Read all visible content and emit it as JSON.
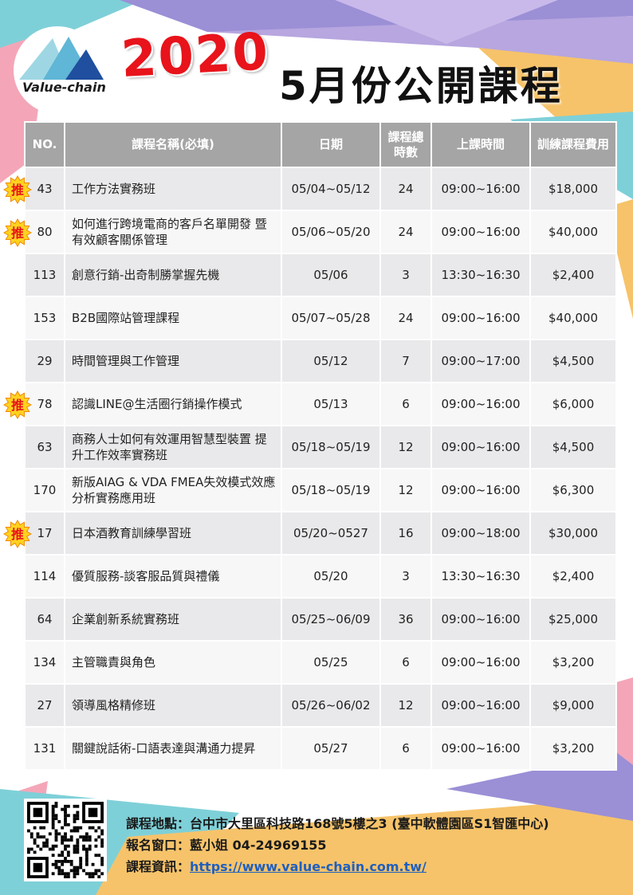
{
  "header": {
    "logo_text": "Value-chain",
    "year": "2020",
    "title": "5月份公開課程"
  },
  "table": {
    "columns": [
      "NO.",
      "課程名稱(必填)",
      "日期",
      "課程總時數",
      "上課時間",
      "訓練課程費用"
    ],
    "badge_label": "推",
    "rows": [
      {
        "no": "43",
        "name": "工作方法實務班",
        "date": "05/04~05/12",
        "hours": "24",
        "time": "09:00~16:00",
        "fee": "$18,000",
        "recommended": true
      },
      {
        "no": "80",
        "name": "如何進行跨境電商的客戶名單開發 暨有效顧客關係管理",
        "date": "05/06~05/20",
        "hours": "24",
        "time": "09:00~16:00",
        "fee": "$40,000",
        "recommended": true
      },
      {
        "no": "113",
        "name": "創意行銷-出奇制勝掌握先機",
        "date": "05/06",
        "hours": "3",
        "time": "13:30~16:30",
        "fee": "$2,400",
        "recommended": false
      },
      {
        "no": "153",
        "name": "B2B國際站管理課程",
        "date": "05/07~05/28",
        "hours": "24",
        "time": "09:00~16:00",
        "fee": "$40,000",
        "recommended": false
      },
      {
        "no": "29",
        "name": "時間管理與工作管理",
        "date": "05/12",
        "hours": "7",
        "time": "09:00~17:00",
        "fee": "$4,500",
        "recommended": false
      },
      {
        "no": "78",
        "name": "認識LINE@生活圈行銷操作模式",
        "date": "05/13",
        "hours": "6",
        "time": "09:00~16:00",
        "fee": "$6,000",
        "recommended": true
      },
      {
        "no": "63",
        "name": "商務人士如何有效運用智慧型裝置 提升工作效率實務班",
        "date": "05/18~05/19",
        "hours": "12",
        "time": "09:00~16:00",
        "fee": "$4,500",
        "recommended": false
      },
      {
        "no": "170",
        "name": "新版AIAG & VDA FMEA失效模式效應分析實務應用班",
        "date": "05/18~05/19",
        "hours": "12",
        "time": "09:00~16:00",
        "fee": "$6,300",
        "recommended": false
      },
      {
        "no": "17",
        "name": "日本酒教育訓練學習班",
        "date": "05/20~0527",
        "hours": "16",
        "time": "09:00~18:00",
        "fee": "$30,000",
        "recommended": true
      },
      {
        "no": "114",
        "name": "優質服務-談客服品質與禮儀",
        "date": "05/20",
        "hours": "3",
        "time": "13:30~16:30",
        "fee": "$2,400",
        "recommended": false
      },
      {
        "no": "64",
        "name": "企業創新系統實務班",
        "date": "05/25~06/09",
        "hours": "36",
        "time": "09:00~16:00",
        "fee": "$25,000",
        "recommended": false
      },
      {
        "no": "134",
        "name": "主管職責與角色",
        "date": "05/25",
        "hours": "6",
        "time": "09:00~16:00",
        "fee": "$3,200",
        "recommended": false
      },
      {
        "no": "27",
        "name": "領導風格精修班",
        "date": "05/26~06/02",
        "hours": "12",
        "time": "09:00~16:00",
        "fee": "$9,000",
        "recommended": false
      },
      {
        "no": "131",
        "name": "關鍵說話術-口語表達與溝通力提昇",
        "date": "05/27",
        "hours": "6",
        "time": "09:00~16:00",
        "fee": "$3,200",
        "recommended": false
      }
    ]
  },
  "footer": {
    "location_label": "課程地點：",
    "location": "台中市大里區科技路168號5樓之3 (臺中軟體園區S1智匯中心)",
    "contact_label": "報名窗口：",
    "contact": "藍小姐 04-24969155",
    "info_label": "課程資訊：",
    "info_url": "https://www.value-chain.com.tw/"
  },
  "colors": {
    "accent_red": "#e8131b",
    "header_gray": "#a5a5a5",
    "row_odd": "#e9e9eb",
    "row_even": "#f7f7f8",
    "link_blue": "#1f5fbf"
  }
}
